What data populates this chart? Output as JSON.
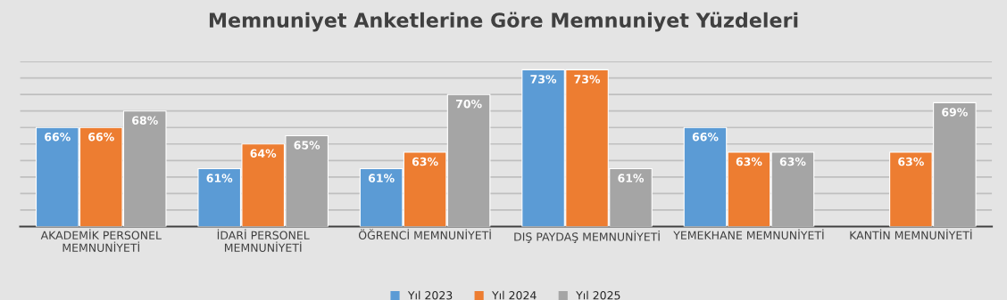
{
  "chart_data": {
    "type": "bar",
    "title": "Memnuniyet Anketlerine Göre Memnuniyet Yüzdeleri",
    "categories": [
      "AKADEMİK PERSONEL\nMEMNUNİYETİ",
      "İDARİ PERSONEL\nMEMNUNİYETİ",
      "ÖĞRENCİ MEMNUNİYETİ",
      "DIŞ PAYDAŞ MEMNUNİYETİ",
      "YEMEKHANE MEMNUNİYETİ",
      "KANTİN MEMNUNİYETİ"
    ],
    "series": [
      {
        "name": "Yıl 2023",
        "color": "#5b9bd5",
        "values": [
          66,
          61,
          61,
          73,
          66,
          null
        ],
        "value_labels": [
          "66%",
          "61%",
          "61%",
          "73%",
          "66%",
          null
        ]
      },
      {
        "name": "Yıl 2024",
        "color": "#ed7d31",
        "values": [
          66,
          64,
          63,
          73,
          63,
          63
        ],
        "value_labels": [
          "66%",
          "64%",
          "63%",
          "73%",
          "63%",
          "63%"
        ]
      },
      {
        "name": "Yıl 2025",
        "color": "#a5a5a5",
        "values": [
          68,
          65,
          70,
          61,
          63,
          69
        ],
        "value_labels": [
          "68%",
          "65%",
          "70%",
          "61%",
          "63%",
          "69%"
        ]
      }
    ],
    "ylim": [
      54,
      74
    ],
    "yticks": [
      {
        "value": 56,
        "label": null
      },
      {
        "value": 58,
        "label": null
      },
      {
        "value": 60,
        "label": null
      },
      {
        "value": 62,
        "label": null
      },
      {
        "value": 64,
        "label": null
      },
      {
        "value": 66,
        "label": null
      },
      {
        "value": 68,
        "label": null
      },
      {
        "value": 70,
        "label": null
      },
      {
        "value": 72,
        "label": null
      },
      {
        "value": 74,
        "label": null
      }
    ],
    "grid": "y",
    "legend": "bottom",
    "tick_labels": "x"
  }
}
